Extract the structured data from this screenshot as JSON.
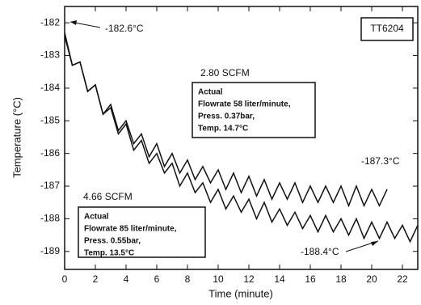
{
  "chart_data": {
    "type": "line",
    "xlabel": "Time (minute)",
    "ylabel": "Temperature (°C)",
    "xlim": [
      0,
      23
    ],
    "xticks": [
      0,
      2,
      4,
      6,
      8,
      10,
      12,
      14,
      16,
      18,
      20,
      22
    ],
    "ylim": [
      -189.55,
      -181.5
    ],
    "yticks": [
      -182,
      -183,
      -184,
      -185,
      -186,
      -187,
      -188,
      -189
    ],
    "grid": false,
    "series": [
      {
        "name": "2.80 SCFM",
        "color": "#111111",
        "x": [
          0,
          0.5,
          1,
          1.5,
          2,
          2.5,
          3,
          3.5,
          4,
          4.5,
          5,
          5.5,
          6,
          6.5,
          7,
          7.5,
          8,
          8.5,
          9,
          9.5,
          10,
          10.5,
          11,
          11.5,
          12,
          12.5,
          13,
          13.5,
          14,
          14.5,
          15,
          15.5,
          16,
          16.5,
          17,
          17.5,
          18,
          18.5,
          19,
          19.5,
          20,
          20.5,
          21
        ],
        "values": [
          -182.4,
          -183.3,
          -183.2,
          -184.1,
          -183.9,
          -184.8,
          -184.5,
          -185.3,
          -185.0,
          -185.7,
          -185.4,
          -186.1,
          -185.7,
          -186.4,
          -186.0,
          -186.6,
          -186.2,
          -186.8,
          -186.4,
          -186.9,
          -186.5,
          -187.1,
          -186.6,
          -187.2,
          -186.7,
          -187.3,
          -186.8,
          -187.4,
          -186.9,
          -187.4,
          -186.9,
          -187.5,
          -187.0,
          -187.5,
          -187.0,
          -187.5,
          -187.0,
          -187.6,
          -187.0,
          -187.6,
          -187.1,
          -187.6,
          -187.1
        ]
      },
      {
        "name": "4.66 SCFM",
        "color": "#111111",
        "x": [
          0,
          0.5,
          1,
          1.5,
          2,
          2.5,
          3,
          3.5,
          4,
          4.5,
          5,
          5.5,
          6,
          6.5,
          7,
          7.5,
          8,
          8.5,
          9,
          9.5,
          10,
          10.5,
          11,
          11.5,
          12,
          12.5,
          13,
          13.5,
          14,
          14.5,
          15,
          15.5,
          16,
          16.5,
          17,
          17.5,
          18,
          18.5,
          19,
          19.5,
          20,
          20.5,
          21,
          21.5,
          22,
          22.5,
          23
        ],
        "values": [
          -182.3,
          -183.3,
          -183.2,
          -184.1,
          -183.9,
          -184.8,
          -184.6,
          -185.4,
          -185.1,
          -185.9,
          -185.6,
          -186.3,
          -186.0,
          -186.6,
          -186.3,
          -187.0,
          -186.6,
          -187.2,
          -186.9,
          -187.5,
          -187.1,
          -187.7,
          -187.3,
          -187.8,
          -187.4,
          -188.0,
          -187.5,
          -188.1,
          -187.7,
          -188.2,
          -187.8,
          -188.3,
          -187.9,
          -188.4,
          -187.9,
          -188.4,
          -188.0,
          -188.5,
          -188.0,
          -188.6,
          -188.1,
          -188.6,
          -188.1,
          -188.6,
          -188.2,
          -188.7,
          -188.2
        ]
      }
    ],
    "tag": "TT6204",
    "annotations": [
      "-182.6°C",
      "-187.3°C",
      "-188.4°C"
    ],
    "notes": [
      {
        "lines": [
          "Actual",
          "Flowrate 58 liter/minute,",
          "Press. 0.37bar,",
          "Temp. 14.7°C"
        ]
      },
      {
        "lines": [
          "Actual",
          "Flowrate 85 liter/minute,",
          "Press. 0.55bar,",
          "Temp. 13.5°C"
        ]
      }
    ]
  }
}
